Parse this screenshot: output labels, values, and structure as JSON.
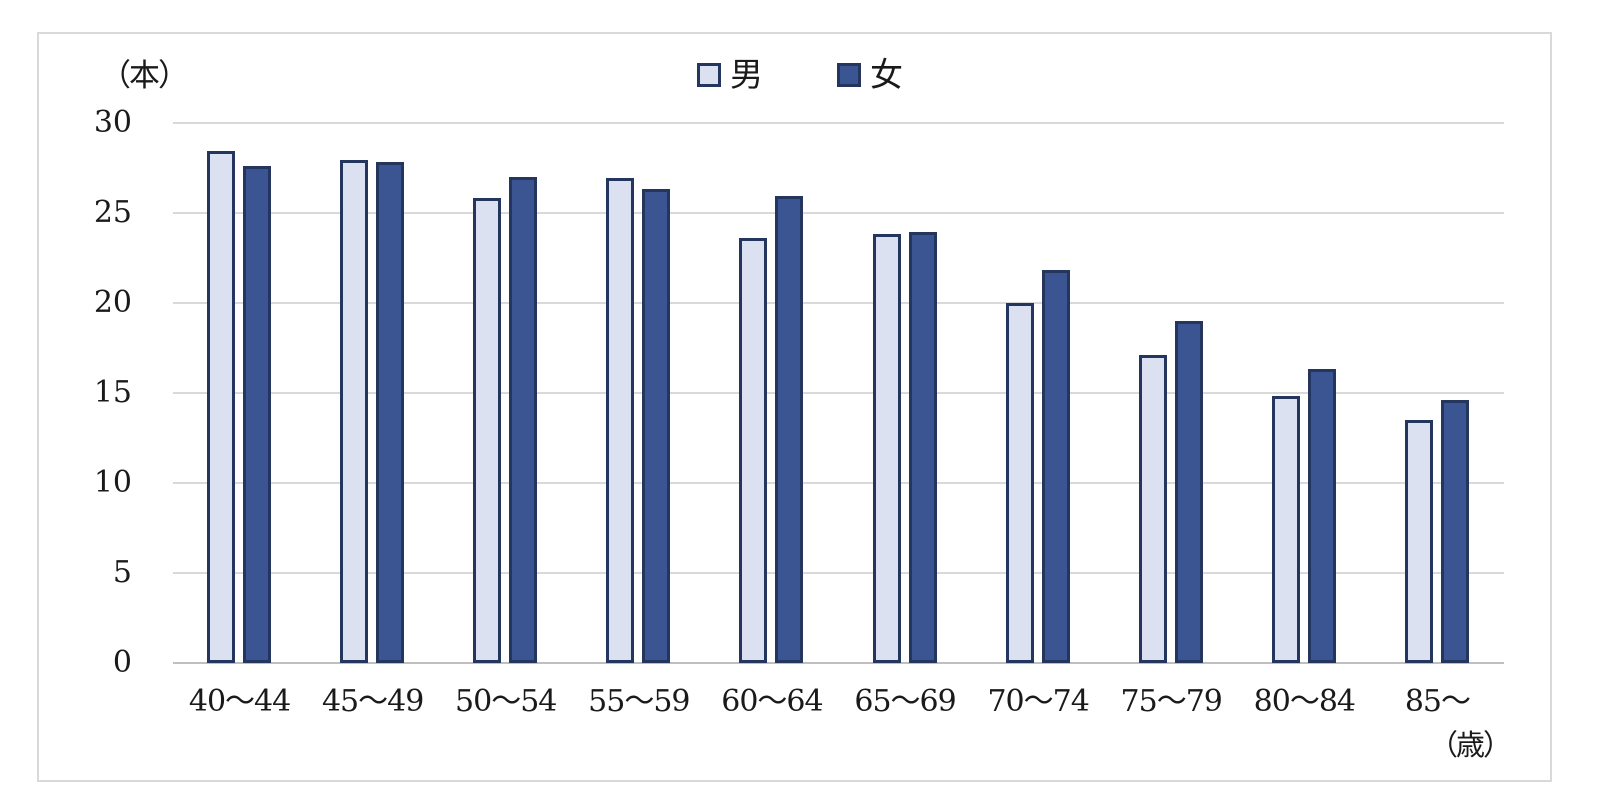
{
  "chart_data": {
    "type": "bar",
    "title": "",
    "categories": [
      "40～44",
      "45～49",
      "50～54",
      "55～59",
      "60～64",
      "65～69",
      "70～74",
      "75～79",
      "80～84",
      "85～"
    ],
    "series": [
      {
        "name": "男",
        "values": [
          28.4,
          27.9,
          25.8,
          26.9,
          23.6,
          23.8,
          20.0,
          17.1,
          14.8,
          13.5
        ]
      },
      {
        "name": "女",
        "values": [
          27.6,
          27.8,
          27.0,
          26.3,
          25.9,
          23.9,
          21.8,
          19.0,
          16.3,
          14.6
        ]
      }
    ],
    "ylabel": "（本）",
    "xlabel": "（歳）",
    "ylim": [
      0,
      30
    ],
    "yticks": [
      0,
      5,
      10,
      15,
      20,
      25,
      30
    ],
    "grid": true,
    "legend_position": "top-center"
  },
  "colors": {
    "male_fill": "#dbe1f1",
    "female_fill": "#3a5591",
    "bar_border": "#24355e",
    "gridline": "#d9d9d9",
    "axis_line": "#bfbfbf",
    "frame_border": "#d9d9d9",
    "text": "#1a1a1a"
  }
}
